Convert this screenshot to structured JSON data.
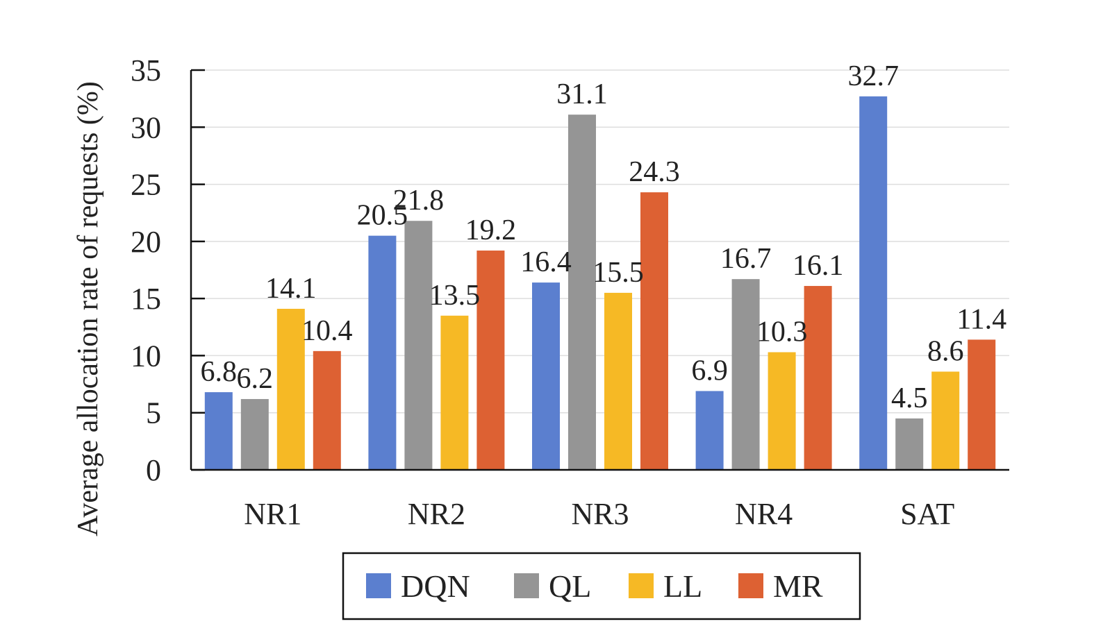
{
  "chart_data": {
    "type": "bar",
    "title": "",
    "xlabel": "",
    "ylabel": "Average allocation rate of requests (%)",
    "ylim": [
      0,
      35
    ],
    "yticks": [
      0,
      5,
      10,
      15,
      20,
      25,
      30,
      35
    ],
    "grid": true,
    "legend_position": "bottom",
    "categories": [
      "NR1",
      "NR2",
      "NR3",
      "NR4",
      "SAT"
    ],
    "series": [
      {
        "name": "DQN",
        "color": "#5b7fcf",
        "values": [
          6.8,
          20.5,
          16.4,
          6.9,
          32.7
        ]
      },
      {
        "name": "QL",
        "color": "#959595",
        "values": [
          6.2,
          21.8,
          31.1,
          16.7,
          4.5
        ]
      },
      {
        "name": "LL",
        "color": "#f6b925",
        "values": [
          14.1,
          13.5,
          15.5,
          10.3,
          8.6
        ]
      },
      {
        "name": "MR",
        "color": "#dd6133",
        "values": [
          10.4,
          19.2,
          24.3,
          16.1,
          11.4
        ]
      }
    ]
  }
}
